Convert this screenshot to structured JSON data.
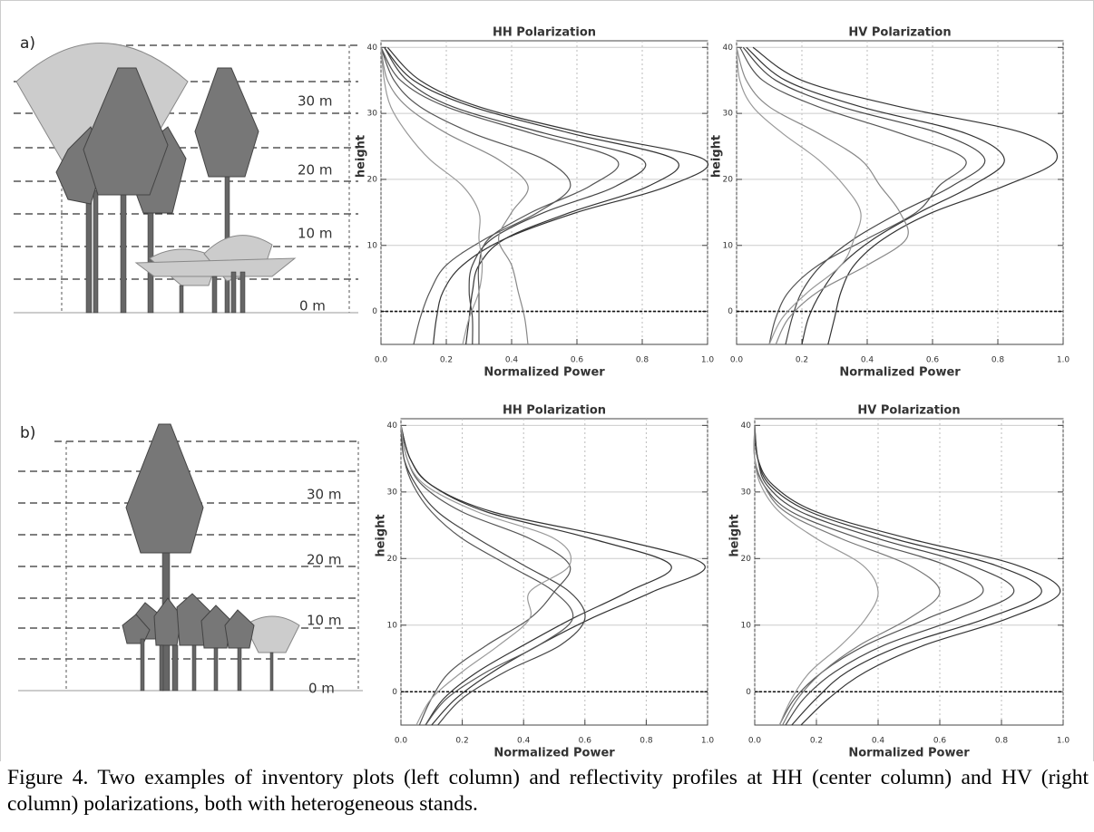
{
  "diagrams": [
    {
      "label": "a)",
      "heights": [
        "30 m",
        "20 m",
        "10 m",
        "0 m"
      ]
    },
    {
      "label": "b)",
      "heights": [
        "30 m",
        "20 m",
        "10 m",
        "0 m"
      ]
    }
  ],
  "chart_data": [
    {
      "type": "line",
      "title": "HH Polarization",
      "x_label": "Normalized Power",
      "y_label": "height",
      "xlim": [
        0,
        1
      ],
      "ylim": [
        -5,
        41
      ],
      "xticks": [
        {
          "value": 0,
          "label": "0.0"
        },
        {
          "value": 0.2,
          "label": "0.2"
        },
        {
          "value": 0.4,
          "label": "0.4"
        },
        {
          "value": 0.6,
          "label": "0.6"
        },
        {
          "value": 0.8,
          "label": "0.8"
        },
        {
          "value": 1,
          "label": "1.0"
        }
      ],
      "yticks": [
        0,
        10,
        20,
        30,
        40
      ],
      "grid": true,
      "reference_line": 0,
      "y": [
        -5,
        -1,
        3,
        7,
        11,
        15,
        19,
        23,
        27,
        31,
        35,
        40
      ],
      "series": [
        {
          "color": "#333333",
          "values": [
            0.16,
            0.17,
            0.19,
            0.25,
            0.38,
            0.6,
            0.88,
            0.99,
            0.62,
            0.3,
            0.12,
            0.02
          ]
        },
        {
          "color": "#333333",
          "values": [
            0.26,
            0.27,
            0.28,
            0.3,
            0.38,
            0.58,
            0.82,
            0.9,
            0.58,
            0.28,
            0.1,
            0.01
          ]
        },
        {
          "color": "#444444",
          "values": [
            0.28,
            0.28,
            0.27,
            0.28,
            0.34,
            0.5,
            0.72,
            0.8,
            0.5,
            0.22,
            0.08,
            0.01
          ]
        },
        {
          "color": "#555555",
          "values": [
            0.3,
            0.3,
            0.3,
            0.3,
            0.33,
            0.46,
            0.64,
            0.72,
            0.46,
            0.2,
            0.06,
            0
          ]
        },
        {
          "color": "#555555",
          "values": [
            0.1,
            0.12,
            0.15,
            0.2,
            0.32,
            0.48,
            0.58,
            0.5,
            0.28,
            0.12,
            0.04,
            0
          ]
        },
        {
          "color": "#888888",
          "values": [
            0.45,
            0.44,
            0.42,
            0.4,
            0.36,
            0.4,
            0.45,
            0.36,
            0.2,
            0.08,
            0.02,
            0
          ]
        },
        {
          "color": "#999999",
          "values": [
            0.25,
            0.27,
            0.3,
            0.31,
            0.3,
            0.3,
            0.25,
            0.15,
            0.08,
            0.03,
            0.01,
            0
          ]
        }
      ]
    },
    {
      "type": "line",
      "title": "HV Polarization",
      "x_label": "Normalized Power",
      "y_label": "height",
      "xlim": [
        0,
        1
      ],
      "ylim": [
        -5,
        41
      ],
      "xticks": [
        {
          "value": 0,
          "label": "0.0"
        },
        {
          "value": 0.2,
          "label": "0.2"
        },
        {
          "value": 0.4,
          "label": "0.4"
        },
        {
          "value": 0.6,
          "label": "0.6"
        },
        {
          "value": 0.8,
          "label": "0.8"
        },
        {
          "value": 1,
          "label": "1.0"
        }
      ],
      "yticks": [
        0,
        10,
        20,
        30,
        40
      ],
      "grid": true,
      "reference_line": 0,
      "y": [
        -5,
        -1,
        3,
        7,
        11,
        15,
        19,
        23,
        27,
        31,
        35,
        40
      ],
      "series": [
        {
          "color": "#333333",
          "values": [
            0.28,
            0.3,
            0.32,
            0.36,
            0.45,
            0.6,
            0.82,
            0.98,
            0.88,
            0.5,
            0.2,
            0.05
          ]
        },
        {
          "color": "#333333",
          "values": [
            0.2,
            0.22,
            0.26,
            0.32,
            0.42,
            0.56,
            0.72,
            0.82,
            0.7,
            0.38,
            0.15,
            0.03
          ]
        },
        {
          "color": "#444444",
          "values": [
            0.15,
            0.17,
            0.2,
            0.26,
            0.36,
            0.5,
            0.66,
            0.76,
            0.62,
            0.32,
            0.12,
            0.02
          ]
        },
        {
          "color": "#555555",
          "values": [
            0.1,
            0.12,
            0.16,
            0.25,
            0.4,
            0.55,
            0.62,
            0.7,
            0.5,
            0.25,
            0.08,
            0.01
          ]
        },
        {
          "color": "#888888",
          "values": [
            0.12,
            0.16,
            0.25,
            0.4,
            0.52,
            0.5,
            0.44,
            0.38,
            0.25,
            0.1,
            0.03,
            0
          ]
        },
        {
          "color": "#999999",
          "values": [
            0.1,
            0.14,
            0.22,
            0.32,
            0.36,
            0.38,
            0.33,
            0.25,
            0.14,
            0.05,
            0.01,
            0
          ]
        }
      ]
    },
    {
      "type": "line",
      "title": "HH Polarization",
      "x_label": "Normalized Power",
      "y_label": "height",
      "xlim": [
        0,
        1
      ],
      "ylim": [
        -5,
        41
      ],
      "xticks": [
        {
          "value": 0,
          "label": "0.0"
        },
        {
          "value": 0.2,
          "label": "0.2"
        },
        {
          "value": 0.4,
          "label": "0.4"
        },
        {
          "value": 0.6,
          "label": "0.6"
        },
        {
          "value": 0.8,
          "label": "0.8"
        },
        {
          "value": 1,
          "label": "1.0"
        }
      ],
      "yticks": [
        0,
        10,
        20,
        30,
        40
      ],
      "grid": true,
      "reference_line": 0,
      "y": [
        -5,
        -1,
        3,
        7,
        11,
        15,
        19,
        23,
        27,
        31,
        35,
        40
      ],
      "series": [
        {
          "color": "#333333",
          "values": [
            0.1,
            0.18,
            0.3,
            0.45,
            0.62,
            0.82,
            0.99,
            0.7,
            0.3,
            0.1,
            0.03,
            0
          ]
        },
        {
          "color": "#333333",
          "values": [
            0.08,
            0.14,
            0.25,
            0.4,
            0.56,
            0.74,
            0.88,
            0.62,
            0.28,
            0.1,
            0.03,
            0
          ]
        },
        {
          "color": "#555555",
          "values": [
            0.06,
            0.1,
            0.16,
            0.28,
            0.42,
            0.5,
            0.55,
            0.42,
            0.2,
            0.07,
            0.02,
            0
          ]
        },
        {
          "color": "#444444",
          "values": [
            0.12,
            0.2,
            0.34,
            0.52,
            0.6,
            0.55,
            0.4,
            0.25,
            0.12,
            0.05,
            0.01,
            0
          ]
        },
        {
          "color": "#555555",
          "values": [
            0.08,
            0.15,
            0.28,
            0.45,
            0.56,
            0.5,
            0.35,
            0.2,
            0.1,
            0.04,
            0.01,
            0
          ]
        },
        {
          "color": "#999999",
          "values": [
            0.05,
            0.1,
            0.2,
            0.32,
            0.42,
            0.42,
            0.55,
            0.5,
            0.25,
            0.08,
            0.02,
            0
          ]
        }
      ]
    },
    {
      "type": "line",
      "title": "HV Polarization",
      "x_label": "Normalized Power",
      "y_label": "height",
      "xlim": [
        0,
        1
      ],
      "ylim": [
        -5,
        41
      ],
      "xticks": [
        {
          "value": 0,
          "label": "0.0"
        },
        {
          "value": 0.2,
          "label": "0.2"
        },
        {
          "value": 0.4,
          "label": "0.4"
        },
        {
          "value": 0.6,
          "label": "0.6"
        },
        {
          "value": 0.8,
          "label": "0.8"
        },
        {
          "value": 1,
          "label": "1.0"
        }
      ],
      "yticks": [
        0,
        10,
        20,
        30,
        40
      ],
      "grid": true,
      "reference_line": 0,
      "y": [
        -5,
        -1,
        3,
        7,
        11,
        15,
        19,
        23,
        27,
        31,
        35,
        40
      ],
      "series": [
        {
          "color": "#333333",
          "values": [
            0.15,
            0.24,
            0.36,
            0.55,
            0.82,
            0.99,
            0.85,
            0.5,
            0.2,
            0.06,
            0.01,
            0
          ]
        },
        {
          "color": "#333333",
          "values": [
            0.12,
            0.2,
            0.3,
            0.48,
            0.75,
            0.93,
            0.78,
            0.45,
            0.18,
            0.05,
            0.01,
            0
          ]
        },
        {
          "color": "#444444",
          "values": [
            0.1,
            0.16,
            0.26,
            0.42,
            0.66,
            0.84,
            0.7,
            0.4,
            0.15,
            0.04,
            0.01,
            0
          ]
        },
        {
          "color": "#555555",
          "values": [
            0.08,
            0.13,
            0.22,
            0.36,
            0.56,
            0.74,
            0.62,
            0.34,
            0.12,
            0.03,
            0,
            0
          ]
        },
        {
          "color": "#777777",
          "values": [
            0.09,
            0.14,
            0.22,
            0.34,
            0.5,
            0.6,
            0.5,
            0.28,
            0.1,
            0.03,
            0,
            0
          ]
        },
        {
          "color": "#999999",
          "values": [
            0.08,
            0.12,
            0.18,
            0.28,
            0.36,
            0.4,
            0.35,
            0.2,
            0.08,
            0.02,
            0,
            0
          ]
        }
      ]
    }
  ],
  "caption": "Figure 4. Two examples of inventory plots (left column) and reflectivity profiles at HH (center column) and HV (right column) polarizations, both with heterogeneous stands."
}
